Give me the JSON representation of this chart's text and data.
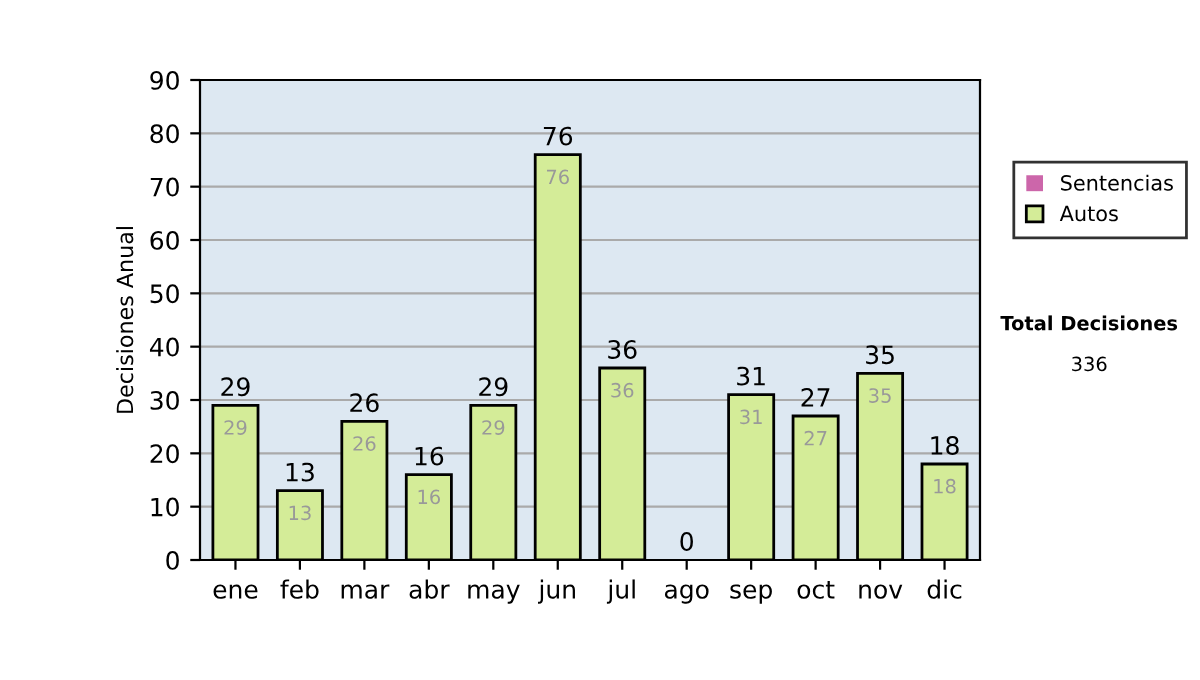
{
  "chart_data": {
    "type": "bar",
    "stacked": true,
    "ylabel": "Decisiones Anual",
    "categories": [
      "ene",
      "feb",
      "mar",
      "abr",
      "may",
      "jun",
      "jul",
      "ago",
      "sep",
      "oct",
      "nov",
      "dic"
    ],
    "series": [
      {
        "name": "Sentencias",
        "color": "#cc66aa",
        "values": [
          0,
          0,
          0,
          0,
          0,
          0,
          0,
          0,
          0,
          0,
          0,
          0
        ]
      },
      {
        "name": "Autos",
        "color": "#d4ec98",
        "values": [
          29,
          13,
          26,
          16,
          29,
          76,
          36,
          0,
          31,
          27,
          35,
          18
        ],
        "value_labels": [
          "29",
          "13",
          "26",
          "16",
          "29",
          "76",
          "36",
          null,
          "31",
          "27",
          "35",
          "18"
        ]
      }
    ],
    "totals": [
      "29",
      "13",
      "26",
      "16",
      "29",
      "76",
      "36",
      "0",
      "31",
      "27",
      "35",
      "18"
    ],
    "ylim": [
      0,
      90
    ],
    "yticks": [
      0,
      10,
      20,
      30,
      40,
      50,
      60,
      70,
      80,
      90
    ],
    "grid": "y",
    "legend": "right",
    "annotations": [
      "Total Decisiones",
      "336"
    ]
  }
}
